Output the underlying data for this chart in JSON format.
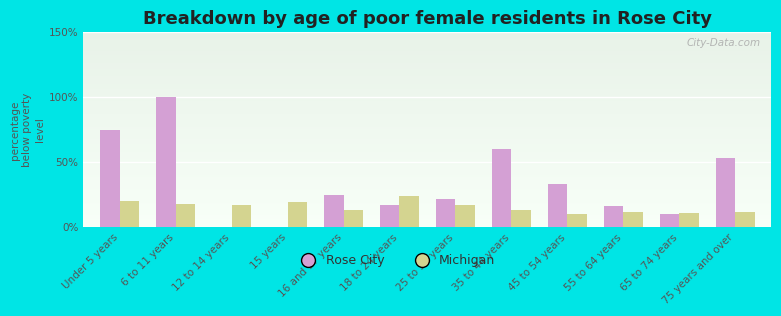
{
  "title": "Breakdown by age of poor female residents in Rose City",
  "ylabel": "percentage\nbelow poverty\nlevel",
  "background_color": "#00e5e5",
  "plot_bg_top": "#e8f2e8",
  "plot_bg_bottom": "#f8fef8",
  "categories": [
    "Under 5 years",
    "6 to 11 years",
    "12 to 14 years",
    "15 years",
    "16 and 17 years",
    "18 to 24 years",
    "25 to 34 years",
    "35 to 44 years",
    "45 to 54 years",
    "55 to 64 years",
    "65 to 74 years",
    "75 years and over"
  ],
  "rose_city": [
    75,
    100,
    0,
    0,
    25,
    17,
    22,
    60,
    33,
    16,
    10,
    53
  ],
  "michigan": [
    20,
    18,
    17,
    19,
    13,
    24,
    17,
    13,
    10,
    12,
    11,
    12
  ],
  "rose_city_color": "#d4a0d4",
  "michigan_color": "#d4d490",
  "ylim": [
    0,
    150
  ],
  "yticks": [
    0,
    50,
    100,
    150
  ],
  "ytick_labels": [
    "0%",
    "50%",
    "100%",
    "150%"
  ],
  "bar_width": 0.35,
  "title_fontsize": 13,
  "axis_label_fontsize": 7.5,
  "tick_fontsize": 7.5,
  "legend_fontsize": 9,
  "watermark": "City-Data.com"
}
